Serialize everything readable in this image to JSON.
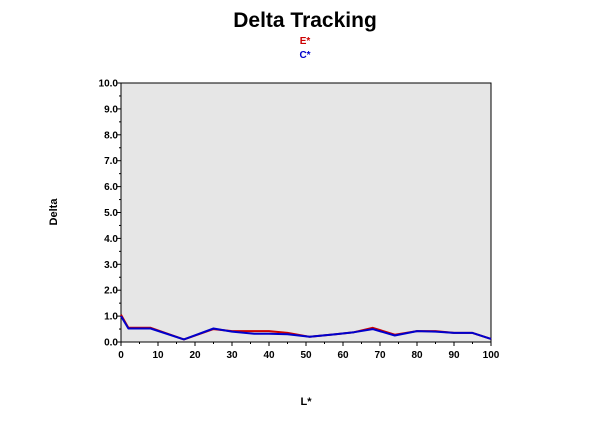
{
  "chart_data": {
    "type": "line",
    "title": "Delta Tracking",
    "xlabel": "L*",
    "ylabel": "Delta",
    "xlim": [
      0,
      100
    ],
    "ylim": [
      0,
      10
    ],
    "x_ticks": [
      "0",
      "10",
      "20",
      "30",
      "40",
      "50",
      "60",
      "70",
      "80",
      "90",
      "100"
    ],
    "y_ticks": [
      "0.0",
      "1.0",
      "2.0",
      "3.0",
      "4.0",
      "5.0",
      "6.0",
      "7.0",
      "8.0",
      "9.0",
      "10.0"
    ],
    "grid": false,
    "legend_position": "top-center",
    "plot_background": "#e6e6e6",
    "series": [
      {
        "name": "E*",
        "color": "#cc0000",
        "x": [
          0,
          2,
          8,
          17,
          25,
          30,
          36,
          40,
          45,
          51,
          58,
          63,
          68,
          74,
          80,
          85,
          90,
          95,
          100
        ],
        "y": [
          1.05,
          0.55,
          0.55,
          0.1,
          0.5,
          0.42,
          0.42,
          0.42,
          0.35,
          0.2,
          0.3,
          0.38,
          0.55,
          0.28,
          0.42,
          0.42,
          0.35,
          0.35,
          0.12
        ]
      },
      {
        "name": "C*",
        "color": "#0000cc",
        "x": [
          0,
          2,
          8,
          17,
          25,
          30,
          36,
          40,
          45,
          51,
          58,
          63,
          68,
          74,
          80,
          85,
          90,
          95,
          100
        ],
        "y": [
          1.0,
          0.52,
          0.52,
          0.1,
          0.52,
          0.4,
          0.32,
          0.32,
          0.3,
          0.2,
          0.3,
          0.38,
          0.5,
          0.25,
          0.42,
          0.4,
          0.35,
          0.35,
          0.12
        ]
      }
    ]
  }
}
